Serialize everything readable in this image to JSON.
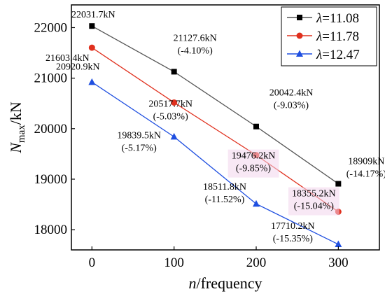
{
  "chart_data": {
    "type": "line",
    "x": [
      0,
      100,
      200,
      300
    ],
    "xlim": [
      -25,
      350
    ],
    "ylim": [
      17600,
      22450
    ],
    "xticks": [
      0,
      100,
      200,
      300
    ],
    "yticks": [
      18000,
      19000,
      20000,
      21000,
      22000
    ],
    "xtick_labels": [
      "0",
      "100",
      "200",
      "300"
    ],
    "ytick_labels": [
      "18000",
      "19000",
      "20000",
      "21000",
      "22000"
    ],
    "xlabel": "n/frequency",
    "ylabel": "Nmax/kN",
    "legend_position": "top-right",
    "grid": false,
    "series": [
      {
        "name": "λ=11.08",
        "color": "#555555",
        "marker_color": "#000000",
        "marker": "square",
        "values": [
          22031.7,
          21127.6,
          20042.4,
          18909
        ],
        "labels": [
          [
            "22031.7kN"
          ],
          [
            "21127.6kN",
            "(-4.10%)"
          ],
          [
            "20042.4kN",
            "(-9.03%)"
          ],
          [
            "18909kN",
            "(-14.17%)"
          ]
        ]
      },
      {
        "name": "λ=11.78",
        "color": "#e0301e",
        "marker_color": "#e0301e",
        "marker": "circle",
        "values": [
          21603.4,
          20517.7,
          19476.2,
          18355.2
        ],
        "labels": [
          [
            "21603.4kN"
          ],
          [
            "20517.7kN",
            "(-5.03%)"
          ],
          [
            "19476.2kN",
            "(-9.85%)"
          ],
          [
            "18355.2kN",
            "(-15.04%)"
          ]
        ]
      },
      {
        "name": "λ=12.47",
        "color": "#1f4fe0",
        "marker_color": "#1f4fe0",
        "marker": "triangle",
        "values": [
          20920.9,
          19839.5,
          18511.8,
          17710.2
        ],
        "labels": [
          [
            "20920.9kN"
          ],
          [
            "19839.5kN",
            "(-5.17%)"
          ],
          [
            "18511.8kN",
            "(-11.52%)"
          ],
          [
            "17710.2kN",
            "(-15.35%)"
          ]
        ]
      }
    ]
  }
}
